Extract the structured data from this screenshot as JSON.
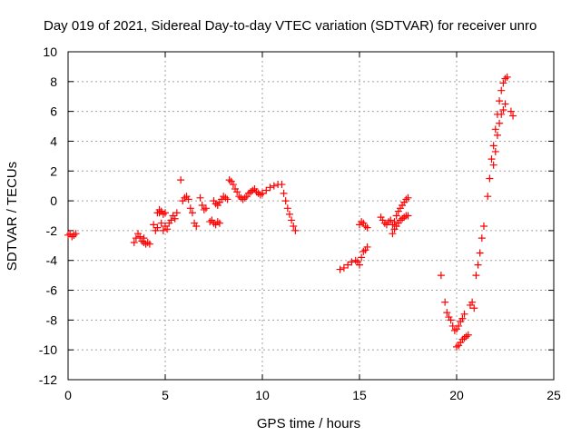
{
  "chart_data": {
    "type": "scatter",
    "title": "Day 019 of 2021, Sidereal Day-to-day VTEC variation (SDTVAR) for receiver unro",
    "xlabel": "GPS time / hours",
    "ylabel": "SDTVAR / TECUs",
    "xlim": [
      0,
      25
    ],
    "ylim": [
      -12,
      10
    ],
    "x_ticks": [
      0,
      5,
      10,
      15,
      20,
      25
    ],
    "y_ticks": [
      -12,
      -10,
      -8,
      -6,
      -4,
      -2,
      0,
      2,
      4,
      6,
      8,
      10
    ],
    "grid": true,
    "legend": "none",
    "marker": "+",
    "colors": {
      "series": "#ff0000",
      "grid": "#a0a0a0",
      "axes": "#000000"
    },
    "segments": [
      {
        "x": [
          0.0,
          0.1,
          0.2,
          0.3,
          0.4
        ],
        "y": [
          -2.3,
          -2.2,
          -2.4,
          -2.3,
          -2.2
        ]
      },
      {
        "x": [
          3.4,
          3.5,
          3.6,
          3.7,
          3.8,
          3.9
        ],
        "y": [
          -2.8,
          -2.5,
          -2.2,
          -2.4,
          -2.7,
          -2.5
        ]
      },
      {
        "x": [
          3.9,
          4.0,
          4.1,
          4.2
        ],
        "y": [
          -2.8,
          -2.9,
          -2.8,
          -2.9
        ]
      },
      {
        "x": [
          4.4,
          4.5,
          4.6,
          4.7,
          4.8,
          4.9,
          5.0,
          5.1,
          5.2,
          5.3,
          5.4,
          5.5,
          5.6
        ],
        "y": [
          -1.6,
          -2.0,
          -1.8,
          -0.8,
          -1.5,
          -2.0,
          -1.7,
          -1.9,
          -1.5,
          -1.3,
          -1.0,
          -1.2,
          -0.8
        ]
      },
      {
        "x": [
          4.6,
          4.7,
          4.8,
          4.9,
          5.0
        ],
        "y": [
          -0.8,
          -0.6,
          -0.7,
          -0.9,
          -0.8
        ]
      },
      {
        "x": [
          5.8
        ],
        "y": [
          1.4
        ]
      },
      {
        "x": [
          5.9,
          6.0,
          6.1,
          6.2
        ],
        "y": [
          0.0,
          0.2,
          0.3,
          0.1
        ]
      },
      {
        "x": [
          6.3,
          6.4,
          6.5,
          6.6
        ],
        "y": [
          -0.5,
          -0.8,
          -1.5,
          -1.7
        ]
      },
      {
        "x": [
          6.8,
          6.9,
          7.0,
          7.1
        ],
        "y": [
          0.2,
          -0.3,
          -0.6,
          -0.5
        ]
      },
      {
        "x": [
          7.3,
          7.4,
          7.5,
          7.6,
          7.7,
          7.8
        ],
        "y": [
          -1.4,
          -1.3,
          -1.5,
          -1.6,
          -1.4,
          -1.5
        ]
      },
      {
        "x": [
          7.5,
          7.6,
          7.7,
          7.8,
          7.9,
          8.0,
          8.1,
          8.2
        ],
        "y": [
          0.0,
          -0.2,
          -0.3,
          -0.1,
          0.1,
          0.3,
          0.2,
          0.1
        ]
      },
      {
        "x": [
          8.3,
          8.4,
          8.5,
          8.6,
          8.7,
          8.8,
          8.9,
          9.0,
          9.1,
          9.2,
          9.3,
          9.4,
          9.5,
          9.6,
          9.7,
          9.8,
          9.9,
          10.0
        ],
        "y": [
          1.4,
          1.3,
          1.1,
          0.8,
          0.6,
          0.3,
          0.2,
          0.1,
          0.2,
          0.3,
          0.5,
          0.6,
          0.7,
          0.8,
          0.6,
          0.5,
          0.4,
          0.5
        ]
      },
      {
        "x": [
          10.0,
          10.2,
          10.4,
          10.6,
          10.8,
          11.0
        ],
        "y": [
          0.5,
          0.7,
          0.9,
          1.0,
          1.1,
          1.1
        ]
      },
      {
        "x": [
          11.1,
          11.2,
          11.3,
          11.4,
          11.5,
          11.6,
          11.7
        ],
        "y": [
          0.5,
          0.0,
          -0.5,
          -0.9,
          -1.3,
          -1.7,
          -2.0
        ]
      },
      {
        "x": [
          14.0,
          14.2,
          14.4,
          14.6,
          14.8,
          14.9
        ],
        "y": [
          -4.6,
          -4.5,
          -4.3,
          -4.1,
          -4.0,
          -4.1
        ]
      },
      {
        "x": [
          15.0,
          15.1,
          15.2,
          15.3,
          15.4
        ],
        "y": [
          -4.3,
          -3.8,
          -3.4,
          -3.3,
          -3.1
        ]
      },
      {
        "x": [
          15.0,
          15.1,
          15.2,
          15.3,
          15.4
        ],
        "y": [
          -1.6,
          -1.4,
          -1.5,
          -1.7,
          -1.8
        ]
      },
      {
        "x": [
          16.1,
          16.2,
          16.3,
          16.4,
          16.5,
          16.6,
          16.7
        ],
        "y": [
          -1.1,
          -1.3,
          -1.5,
          -1.6,
          -1.4,
          -1.3,
          -1.6
        ]
      },
      {
        "x": [
          16.7,
          16.8,
          16.9,
          17.0,
          17.1,
          17.2,
          17.3,
          17.4,
          17.5
        ],
        "y": [
          -2.2,
          -1.9,
          -1.7,
          -1.5,
          -1.3,
          -1.2,
          -1.1,
          -1.0,
          -1.0
        ]
      },
      {
        "x": [
          16.8,
          16.9,
          17.0,
          17.1,
          17.2,
          17.3,
          17.4,
          17.5
        ],
        "y": [
          -1.4,
          -1.0,
          -0.7,
          -0.5,
          -0.3,
          -0.1,
          0.1,
          0.2
        ]
      },
      {
        "x": [
          19.2
        ],
        "y": [
          -5.0
        ]
      },
      {
        "x": [
          19.4,
          19.5,
          19.6,
          19.7,
          19.8,
          19.9,
          20.0,
          20.1,
          20.2,
          20.3,
          20.4
        ],
        "y": [
          -6.8,
          -7.5,
          -7.8,
          -8.0,
          -8.4,
          -8.7,
          -8.6,
          -8.4,
          -8.1,
          -7.9,
          -7.6
        ]
      },
      {
        "x": [
          20.0,
          20.1,
          20.2,
          20.3,
          20.4,
          20.5,
          20.6
        ],
        "y": [
          -9.8,
          -9.7,
          -9.5,
          -9.3,
          -9.2,
          -9.1,
          -9.0
        ]
      },
      {
        "x": [
          20.7,
          20.8,
          20.9
        ],
        "y": [
          -7.0,
          -6.8,
          -7.2
        ]
      },
      {
        "x": [
          21.0,
          21.1,
          21.2,
          21.3,
          21.4
        ],
        "y": [
          -5.0,
          -4.3,
          -3.5,
          -2.5,
          -1.7
        ]
      },
      {
        "x": [
          21.6,
          21.7,
          21.8,
          21.9,
          22.0,
          22.1,
          22.2,
          22.3,
          22.4,
          22.5,
          22.6
        ],
        "y": [
          0.3,
          1.5,
          2.8,
          3.7,
          4.8,
          5.8,
          6.7,
          7.4,
          7.9,
          8.2,
          8.3
        ]
      },
      {
        "x": [
          21.9,
          22.0,
          22.1,
          22.2,
          22.3,
          22.4,
          22.5
        ],
        "y": [
          2.4,
          3.3,
          4.4,
          5.2,
          5.8,
          6.1,
          6.5
        ]
      },
      {
        "x": [
          22.8,
          22.9
        ],
        "y": [
          6.0,
          5.7
        ]
      }
    ]
  }
}
